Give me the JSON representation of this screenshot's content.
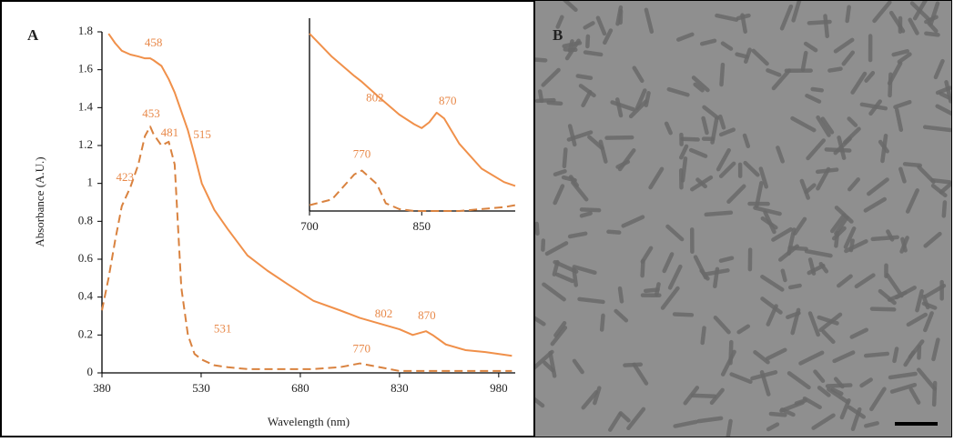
{
  "panel_labels": [
    "A",
    "B"
  ],
  "chart_data": [
    {
      "type": "line",
      "x_label": "Wavelength (nm)",
      "y_label": "Absorbance (A.U.)",
      "x": [
        380,
        390,
        400,
        410,
        423,
        435,
        445,
        453,
        458,
        470,
        481,
        490,
        500,
        510,
        520,
        531,
        550,
        570,
        600,
        630,
        660,
        700,
        740,
        770,
        800,
        830,
        850,
        870,
        880,
        900,
        930,
        960,
        1000
      ],
      "series": [
        {
          "color": "#f0904a",
          "dash": false,
          "values": [
            null,
            1.79,
            1.74,
            1.7,
            1.68,
            1.67,
            1.66,
            1.66,
            1.65,
            1.62,
            1.55,
            1.48,
            1.38,
            1.28,
            1.15,
            1.0,
            0.86,
            0.76,
            0.62,
            0.54,
            0.47,
            0.38,
            0.33,
            0.29,
            0.26,
            0.23,
            0.2,
            0.22,
            0.2,
            0.15,
            0.12,
            0.11,
            0.09
          ],
          "peak_labels": [
            458,
            515,
            802,
            870
          ]
        },
        {
          "color": "#d9823f",
          "dash": true,
          "values": [
            0.33,
            0.5,
            0.7,
            0.88,
            0.98,
            1.1,
            1.25,
            1.3,
            1.26,
            1.2,
            1.22,
            1.1,
            0.45,
            0.2,
            0.1,
            0.07,
            0.04,
            0.03,
            0.02,
            0.02,
            0.02,
            0.02,
            0.03,
            0.05,
            0.03,
            0.01,
            0.01,
            0.01,
            0.01,
            0.01,
            0.01,
            0.01,
            0.01
          ],
          "peak_labels": [
            423,
            453,
            481,
            531,
            770
          ]
        }
      ],
      "xlim": [
        380,
        1005
      ],
      "xticks": [
        380,
        530,
        680,
        830,
        980
      ],
      "ylim": [
        0,
        1.8
      ],
      "yticks": [
        0,
        0.2,
        0.4,
        0.6,
        0.8,
        1,
        1.2,
        1.4,
        1.6,
        1.8
      ]
    },
    {
      "type": "line",
      "inset": true,
      "x": [
        700,
        730,
        760,
        770,
        790,
        802,
        820,
        840,
        850,
        860,
        870,
        880,
        900,
        930,
        960,
        975
      ],
      "series": [
        {
          "color": "#f0904a",
          "dash": false,
          "values": [
            0.92,
            0.8,
            0.7,
            0.67,
            0.6,
            0.56,
            0.5,
            0.45,
            0.43,
            0.46,
            0.51,
            0.48,
            0.35,
            0.22,
            0.15,
            0.13
          ],
          "peak_labels": [
            802,
            870
          ]
        },
        {
          "color": "#d9823f",
          "dash": true,
          "values": [
            0.03,
            0.06,
            0.19,
            0.21,
            0.14,
            0.04,
            0.01,
            0.0,
            0.0,
            0.0,
            0.0,
            0.0,
            0.0,
            0.01,
            0.02,
            0.03
          ],
          "peak_labels": [
            770
          ]
        }
      ],
      "xlim": [
        700,
        975
      ],
      "xticks": [
        700,
        850
      ],
      "ylim": [
        0,
        1
      ]
    }
  ]
}
